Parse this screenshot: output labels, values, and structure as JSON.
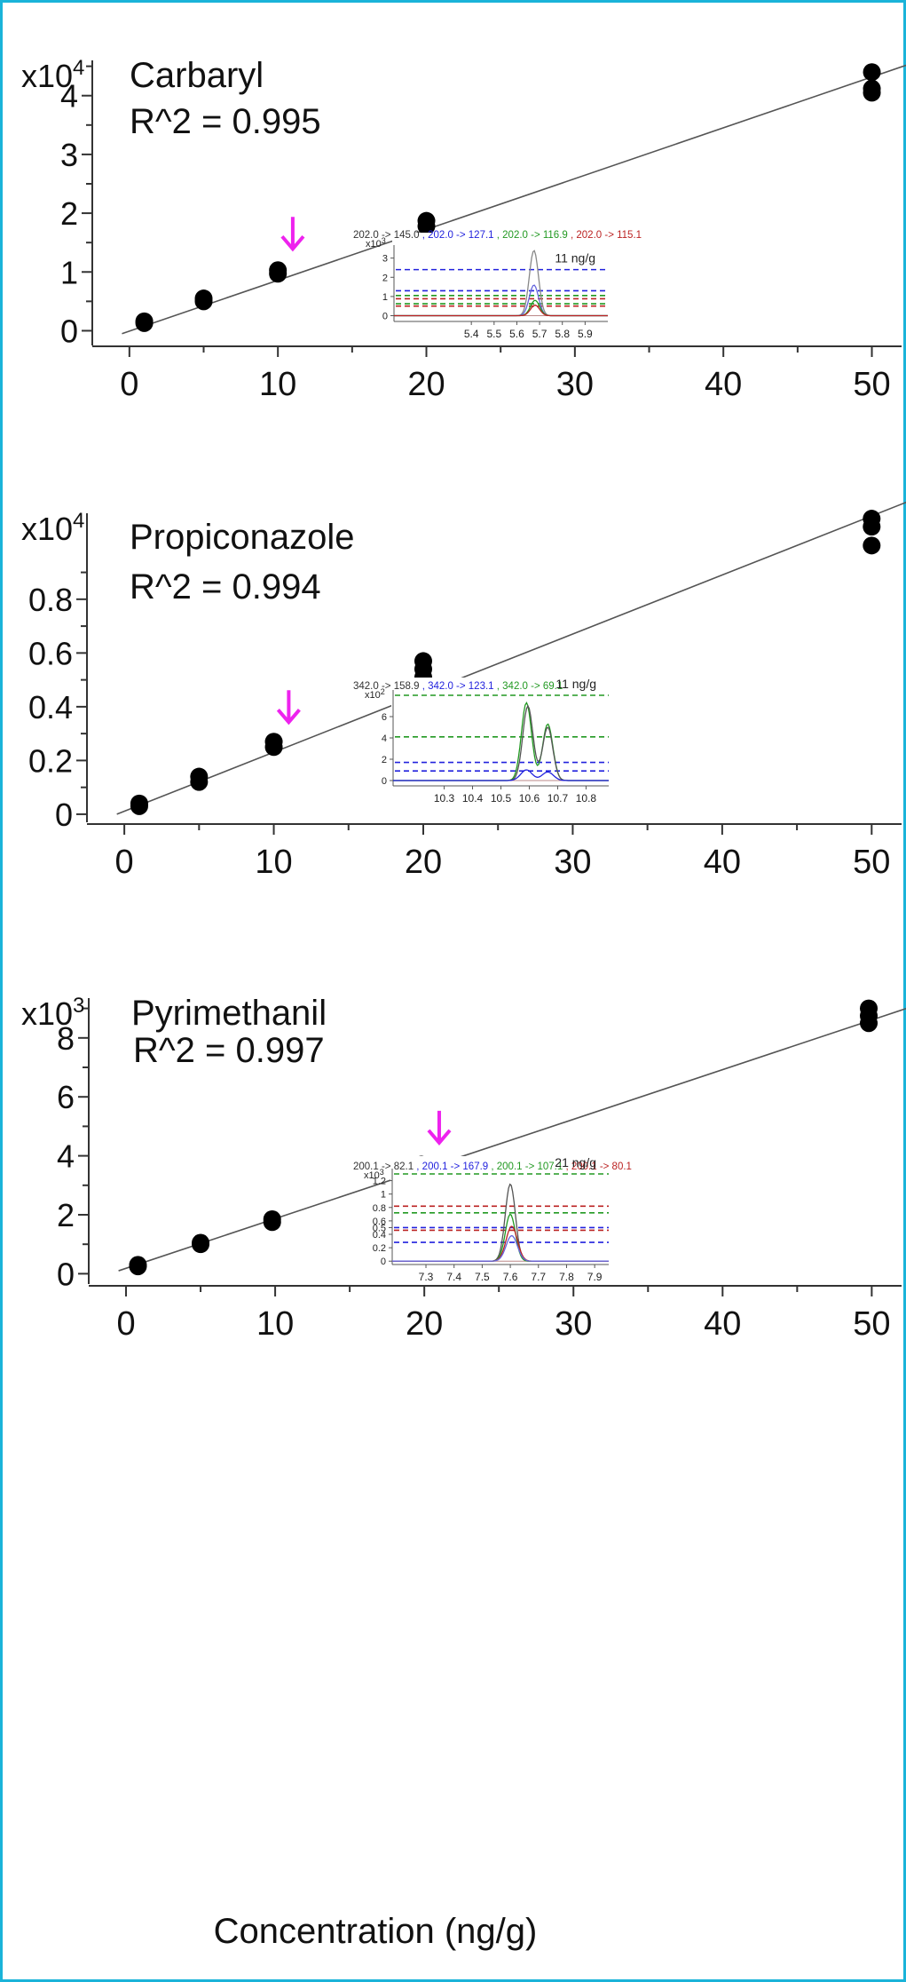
{
  "colors": {
    "frame": "#1ab3d9",
    "arrow": "#ee22ee",
    "fit_line": "#555555",
    "point": "#000000",
    "trace_black": "#333333",
    "trace_blue": "#2222dd",
    "trace_green": "#229922",
    "trace_red": "#bb2222"
  },
  "chart_data": [
    {
      "type": "scatter",
      "name": "Carbaryl",
      "title": "Carbaryl",
      "r2_label": "R^2 = 0.995",
      "y_multiplier": "x10",
      "y_multiplier_exp": "4",
      "xlabel": "",
      "xlim": [
        -2.5,
        52
      ],
      "ylim": [
        -0.25,
        4.6
      ],
      "x_ticks": [
        0,
        10,
        20,
        30,
        40,
        50
      ],
      "y_ticks": [
        0,
        1,
        2,
        3,
        4
      ],
      "points": [
        {
          "x": 1,
          "y": 0.13
        },
        {
          "x": 1,
          "y": 0.16
        },
        {
          "x": 5,
          "y": 0.5
        },
        {
          "x": 5,
          "y": 0.55
        },
        {
          "x": 10,
          "y": 0.97
        },
        {
          "x": 10,
          "y": 1.03
        },
        {
          "x": 20,
          "y": 1.78
        },
        {
          "x": 20,
          "y": 1.87
        },
        {
          "x": 50,
          "y": 4.05
        },
        {
          "x": 50,
          "y": 4.12
        },
        {
          "x": 50,
          "y": 4.4
        }
      ],
      "fit": {
        "x": [
          -0.5,
          55
        ],
        "y": [
          -0.05,
          4.75
        ]
      },
      "arrow_x": 11,
      "inset": {
        "legend": [
          {
            "text": "202.0 -> 145.0",
            "color": "#333333"
          },
          {
            "text": ", 202.0 -> 127.1",
            "color": "#2222dd"
          },
          {
            "text": ", 202.0 -> 116.9",
            "color": "#229922"
          },
          {
            "text": ", 202.0 -> 115.1",
            "color": "#bb2222"
          }
        ],
        "y_unit": "x10",
        "y_unit_exp": "3",
        "xlim": [
          5.06,
          6.0
        ],
        "ylim": [
          -0.3,
          3.4
        ],
        "x_ticks": [
          5.4,
          5.5,
          5.6,
          5.7,
          5.8,
          5.9
        ],
        "y_ticks": [
          0,
          1,
          2,
          3
        ],
        "conc_label": "11 ng/g",
        "hlines": [
          {
            "y": 2.4,
            "color": "#2222dd"
          },
          {
            "y": 1.3,
            "color": "#2222dd"
          },
          {
            "y": 1.05,
            "color": "#229922"
          },
          {
            "y": 0.88,
            "color": "#bb2222"
          },
          {
            "y": 0.62,
            "color": "#229922"
          },
          {
            "y": 0.5,
            "color": "#bb2222"
          }
        ],
        "peaks": [
          {
            "center": 5.675,
            "width": 0.02,
            "height": 3.4,
            "color": "#888888"
          },
          {
            "center": 5.675,
            "width": 0.02,
            "height": 1.6,
            "color": "#6666dd"
          },
          {
            "center": 5.68,
            "width": 0.02,
            "height": 0.8,
            "color": "#229922"
          },
          {
            "center": 5.68,
            "width": 0.02,
            "height": 0.55,
            "color": "#bb2222"
          }
        ]
      }
    },
    {
      "type": "scatter",
      "name": "Propiconazole",
      "title": "Propiconazole",
      "r2_label": "R^2 = 0.994",
      "y_multiplier": "x10",
      "y_multiplier_exp": "4",
      "xlabel": "",
      "xlim": [
        -2.5,
        52
      ],
      "ylim": [
        -0.03,
        1.12
      ],
      "x_ticks": [
        0,
        10,
        20,
        30,
        40,
        50
      ],
      "y_ticks": [
        0,
        0.2,
        0.4,
        0.6,
        0.8
      ],
      "y_tick_labels": [
        "0",
        "0.2",
        "0.4",
        "0.6",
        "0.8"
      ],
      "points": [
        {
          "x": 1,
          "y": 0.03
        },
        {
          "x": 1,
          "y": 0.04
        },
        {
          "x": 5,
          "y": 0.12
        },
        {
          "x": 5,
          "y": 0.14
        },
        {
          "x": 10,
          "y": 0.25
        },
        {
          "x": 10,
          "y": 0.27
        },
        {
          "x": 20,
          "y": 0.51
        },
        {
          "x": 20,
          "y": 0.54
        },
        {
          "x": 20,
          "y": 0.57
        },
        {
          "x": 50,
          "y": 1.0
        },
        {
          "x": 50,
          "y": 1.07
        },
        {
          "x": 50,
          "y": 1.1
        }
      ],
      "fit": {
        "x": [
          -0.5,
          55
        ],
        "y": [
          0.0,
          1.22
        ]
      },
      "arrow_x": 11,
      "inset": {
        "legend": [
          {
            "text": "342.0 -> 158.9",
            "color": "#333333"
          },
          {
            "text": ", 342.0 -> 123.1",
            "color": "#2222dd"
          },
          {
            "text": ", 342.0 -> 69.1",
            "color": "#229922"
          }
        ],
        "y_unit": "x10",
        "y_unit_exp": "2",
        "xlim": [
          10.12,
          10.88
        ],
        "ylim": [
          -0.5,
          8.0
        ],
        "x_ticks": [
          10.3,
          10.4,
          10.5,
          10.6,
          10.7,
          10.8
        ],
        "y_ticks": [
          0,
          2,
          4,
          6
        ],
        "conc_label": "11 ng/g",
        "hlines": [
          {
            "y": 8.0,
            "color": "#229922"
          },
          {
            "y": 4.1,
            "color": "#229922"
          },
          {
            "y": 1.7,
            "color": "#2222dd"
          },
          {
            "y": 0.9,
            "color": "#2222dd"
          }
        ],
        "peaks": [
          {
            "center": 10.59,
            "width": 0.018,
            "height": 7.3,
            "color": "#229922",
            "center2": 10.665,
            "height2": 5.3
          },
          {
            "center": 10.595,
            "width": 0.018,
            "height": 7.0,
            "color": "#555555",
            "center2": 10.665,
            "height2": 5.0
          },
          {
            "center": 10.59,
            "width": 0.02,
            "height": 1.0,
            "color": "#2222dd",
            "center2": 10.665,
            "height2": 0.8
          }
        ]
      }
    },
    {
      "type": "scatter",
      "name": "Pyrimethanil",
      "title": "Pyrimethanil",
      "r2_label": "R^2 = 0.997",
      "y_multiplier": "x10",
      "y_multiplier_exp": "3",
      "xlabel": "Concentration (ng/g)",
      "xlim": [
        -2.5,
        52
      ],
      "ylim": [
        -0.35,
        9.35
      ],
      "x_ticks": [
        0,
        10,
        20,
        30,
        40,
        50
      ],
      "y_ticks": [
        0,
        2,
        4,
        6,
        8
      ],
      "points": [
        {
          "x": 0.8,
          "y": 0.25
        },
        {
          "x": 0.8,
          "y": 0.3
        },
        {
          "x": 5,
          "y": 1.0
        },
        {
          "x": 5,
          "y": 1.05
        },
        {
          "x": 9.8,
          "y": 1.75
        },
        {
          "x": 9.8,
          "y": 1.85
        },
        {
          "x": 19.8,
          "y": 3.6
        },
        {
          "x": 19.8,
          "y": 3.7
        },
        {
          "x": 49.8,
          "y": 8.5
        },
        {
          "x": 49.8,
          "y": 8.75
        },
        {
          "x": 49.8,
          "y": 9.0
        }
      ],
      "fit": {
        "x": [
          -0.5,
          55
        ],
        "y": [
          0.1,
          9.45
        ]
      },
      "arrow_x": 21,
      "inset": {
        "legend": [
          {
            "text": "200.1 -> 82.1",
            "color": "#333333"
          },
          {
            "text": ", 200.1 -> 167.9",
            "color": "#2222dd"
          },
          {
            "text": ", 200.1 -> 107.1",
            "color": "#229922"
          },
          {
            "text": ", 200.1 -> 80.1",
            "color": "#bb2222"
          }
        ],
        "y_unit": "x10",
        "y_unit_exp": "3",
        "xlim": [
          7.18,
          7.95
        ],
        "ylim": [
          -0.05,
          1.3
        ],
        "x_ticks": [
          7.3,
          7.4,
          7.5,
          7.6,
          7.7,
          7.8,
          7.9
        ],
        "y_ticks": [
          0,
          0.2,
          0.4,
          0.5,
          0.6,
          0.8,
          1,
          1.2
        ],
        "y_tick_labels": [
          "0",
          "0.2",
          "0.4",
          "0.5",
          "0.6",
          "0.8",
          "1",
          "1.2"
        ],
        "conc_label": "21 ng/g",
        "hlines": [
          {
            "y": 1.3,
            "color": "#229922"
          },
          {
            "y": 0.82,
            "color": "#bb2222"
          },
          {
            "y": 0.72,
            "color": "#229922"
          },
          {
            "y": 0.5,
            "color": "#2222dd"
          },
          {
            "y": 0.46,
            "color": "#bb2222"
          },
          {
            "y": 0.28,
            "color": "#2222dd"
          }
        ],
        "peaks": [
          {
            "center": 7.6,
            "width": 0.018,
            "height": 1.15,
            "color": "#555555"
          },
          {
            "center": 7.6,
            "width": 0.018,
            "height": 0.7,
            "color": "#229922"
          },
          {
            "center": 7.605,
            "width": 0.02,
            "height": 0.52,
            "color": "#bb2222"
          },
          {
            "center": 7.605,
            "width": 0.02,
            "height": 0.38,
            "color": "#6666dd"
          }
        ]
      }
    }
  ]
}
